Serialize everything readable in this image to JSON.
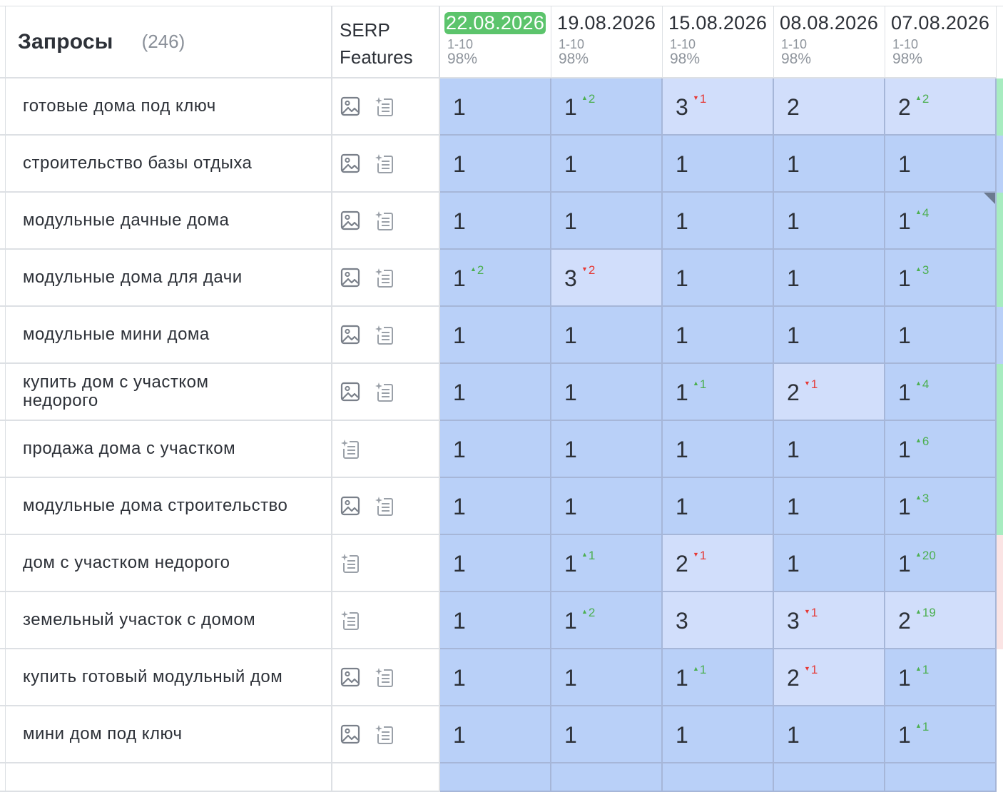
{
  "header": {
    "queries_title": "Запросы",
    "queries_count": "(246)",
    "serp_label_line1": "SERP",
    "serp_label_line2": "Features",
    "dates": [
      {
        "date": "22.08.2026",
        "range": "1-10",
        "pct": "98%",
        "current": true
      },
      {
        "date": "19.08.2026",
        "range": "1-10",
        "pct": "98%"
      },
      {
        "date": "15.08.2026",
        "range": "1-10",
        "pct": "98%"
      },
      {
        "date": "08.08.2026",
        "range": "1-10",
        "pct": "98%"
      },
      {
        "date": "07.08.2026",
        "range": "1-10",
        "pct": "98%"
      }
    ]
  },
  "colors": {
    "current_date_bg": "#5cc46c",
    "position_top": "#b9d0f8",
    "position_mid": "#d1defb",
    "change_up": "#4caf50",
    "change_down": "#e53935"
  },
  "rows": [
    {
      "keyword": "готовые дома под ключ",
      "icons": [
        "image-icon",
        "snippet-icon"
      ],
      "cells": [
        {
          "v": "1"
        },
        {
          "v": "1",
          "d": "up",
          "c": "2"
        },
        {
          "v": "3",
          "d": "down",
          "c": "1"
        },
        {
          "v": "2"
        },
        {
          "v": "2",
          "d": "up",
          "c": "2"
        }
      ],
      "edge": "green"
    },
    {
      "keyword": "строительство базы отдыха",
      "icons": [
        "image-icon",
        "snippet-icon"
      ],
      "cells": [
        {
          "v": "1"
        },
        {
          "v": "1"
        },
        {
          "v": "1"
        },
        {
          "v": "1"
        },
        {
          "v": "1"
        }
      ],
      "edge": "blue"
    },
    {
      "keyword": "модульные дачные дома",
      "icons": [
        "image-icon",
        "snippet-icon"
      ],
      "cells": [
        {
          "v": "1"
        },
        {
          "v": "1"
        },
        {
          "v": "1"
        },
        {
          "v": "1"
        },
        {
          "v": "1",
          "d": "up",
          "c": "4",
          "corner": true
        }
      ],
      "edge": "green"
    },
    {
      "keyword": "модульные дома для дачи",
      "icons": [
        "image-icon",
        "snippet-icon"
      ],
      "cells": [
        {
          "v": "1",
          "d": "up",
          "c": "2"
        },
        {
          "v": "3",
          "d": "down",
          "c": "2"
        },
        {
          "v": "1"
        },
        {
          "v": "1"
        },
        {
          "v": "1",
          "d": "up",
          "c": "3"
        }
      ],
      "edge": "green"
    },
    {
      "keyword": "модульные мини дома",
      "icons": [
        "image-icon",
        "snippet-icon"
      ],
      "cells": [
        {
          "v": "1"
        },
        {
          "v": "1"
        },
        {
          "v": "1"
        },
        {
          "v": "1"
        },
        {
          "v": "1"
        }
      ],
      "edge": "blue"
    },
    {
      "keyword": "купить дом с участком недорого",
      "icons": [
        "image-icon",
        "snippet-icon"
      ],
      "cells": [
        {
          "v": "1"
        },
        {
          "v": "1"
        },
        {
          "v": "1",
          "d": "up",
          "c": "1"
        },
        {
          "v": "2",
          "d": "down",
          "c": "1"
        },
        {
          "v": "1",
          "d": "up",
          "c": "4"
        }
      ],
      "edge": "green"
    },
    {
      "keyword": "продажа дома с участком",
      "icons": [
        "snippet-icon"
      ],
      "cells": [
        {
          "v": "1"
        },
        {
          "v": "1"
        },
        {
          "v": "1"
        },
        {
          "v": "1"
        },
        {
          "v": "1",
          "d": "up",
          "c": "6"
        }
      ],
      "edge": "green"
    },
    {
      "keyword": "модульные дома строительство",
      "icons": [
        "image-icon",
        "snippet-icon"
      ],
      "cells": [
        {
          "v": "1"
        },
        {
          "v": "1"
        },
        {
          "v": "1"
        },
        {
          "v": "1"
        },
        {
          "v": "1",
          "d": "up",
          "c": "3"
        }
      ],
      "edge": "green"
    },
    {
      "keyword": "дом с участком недорого",
      "icons": [
        "snippet-icon"
      ],
      "cells": [
        {
          "v": "1"
        },
        {
          "v": "1",
          "d": "up",
          "c": "1"
        },
        {
          "v": "2",
          "d": "down",
          "c": "1"
        },
        {
          "v": "1"
        },
        {
          "v": "1",
          "d": "up",
          "c": "20"
        }
      ],
      "edge": "pink"
    },
    {
      "keyword": "земельный участок с домом",
      "icons": [
        "snippet-icon"
      ],
      "cells": [
        {
          "v": "1"
        },
        {
          "v": "1",
          "d": "up",
          "c": "2"
        },
        {
          "v": "3"
        },
        {
          "v": "3",
          "d": "down",
          "c": "1"
        },
        {
          "v": "2",
          "d": "up",
          "c": "19"
        }
      ],
      "edge": "pink"
    },
    {
      "keyword": "купить готовый модульный дом",
      "icons": [
        "image-icon",
        "snippet-icon"
      ],
      "cells": [
        {
          "v": "1"
        },
        {
          "v": "1"
        },
        {
          "v": "1",
          "d": "up",
          "c": "1"
        },
        {
          "v": "2",
          "d": "down",
          "c": "1"
        },
        {
          "v": "1",
          "d": "up",
          "c": "1"
        }
      ],
      "edge": "white"
    },
    {
      "keyword": "мини дом под ключ",
      "icons": [
        "image-icon",
        "snippet-icon"
      ],
      "cells": [
        {
          "v": "1"
        },
        {
          "v": "1"
        },
        {
          "v": "1"
        },
        {
          "v": "1"
        },
        {
          "v": "1",
          "d": "up",
          "c": "1"
        }
      ],
      "edge": "white"
    }
  ]
}
